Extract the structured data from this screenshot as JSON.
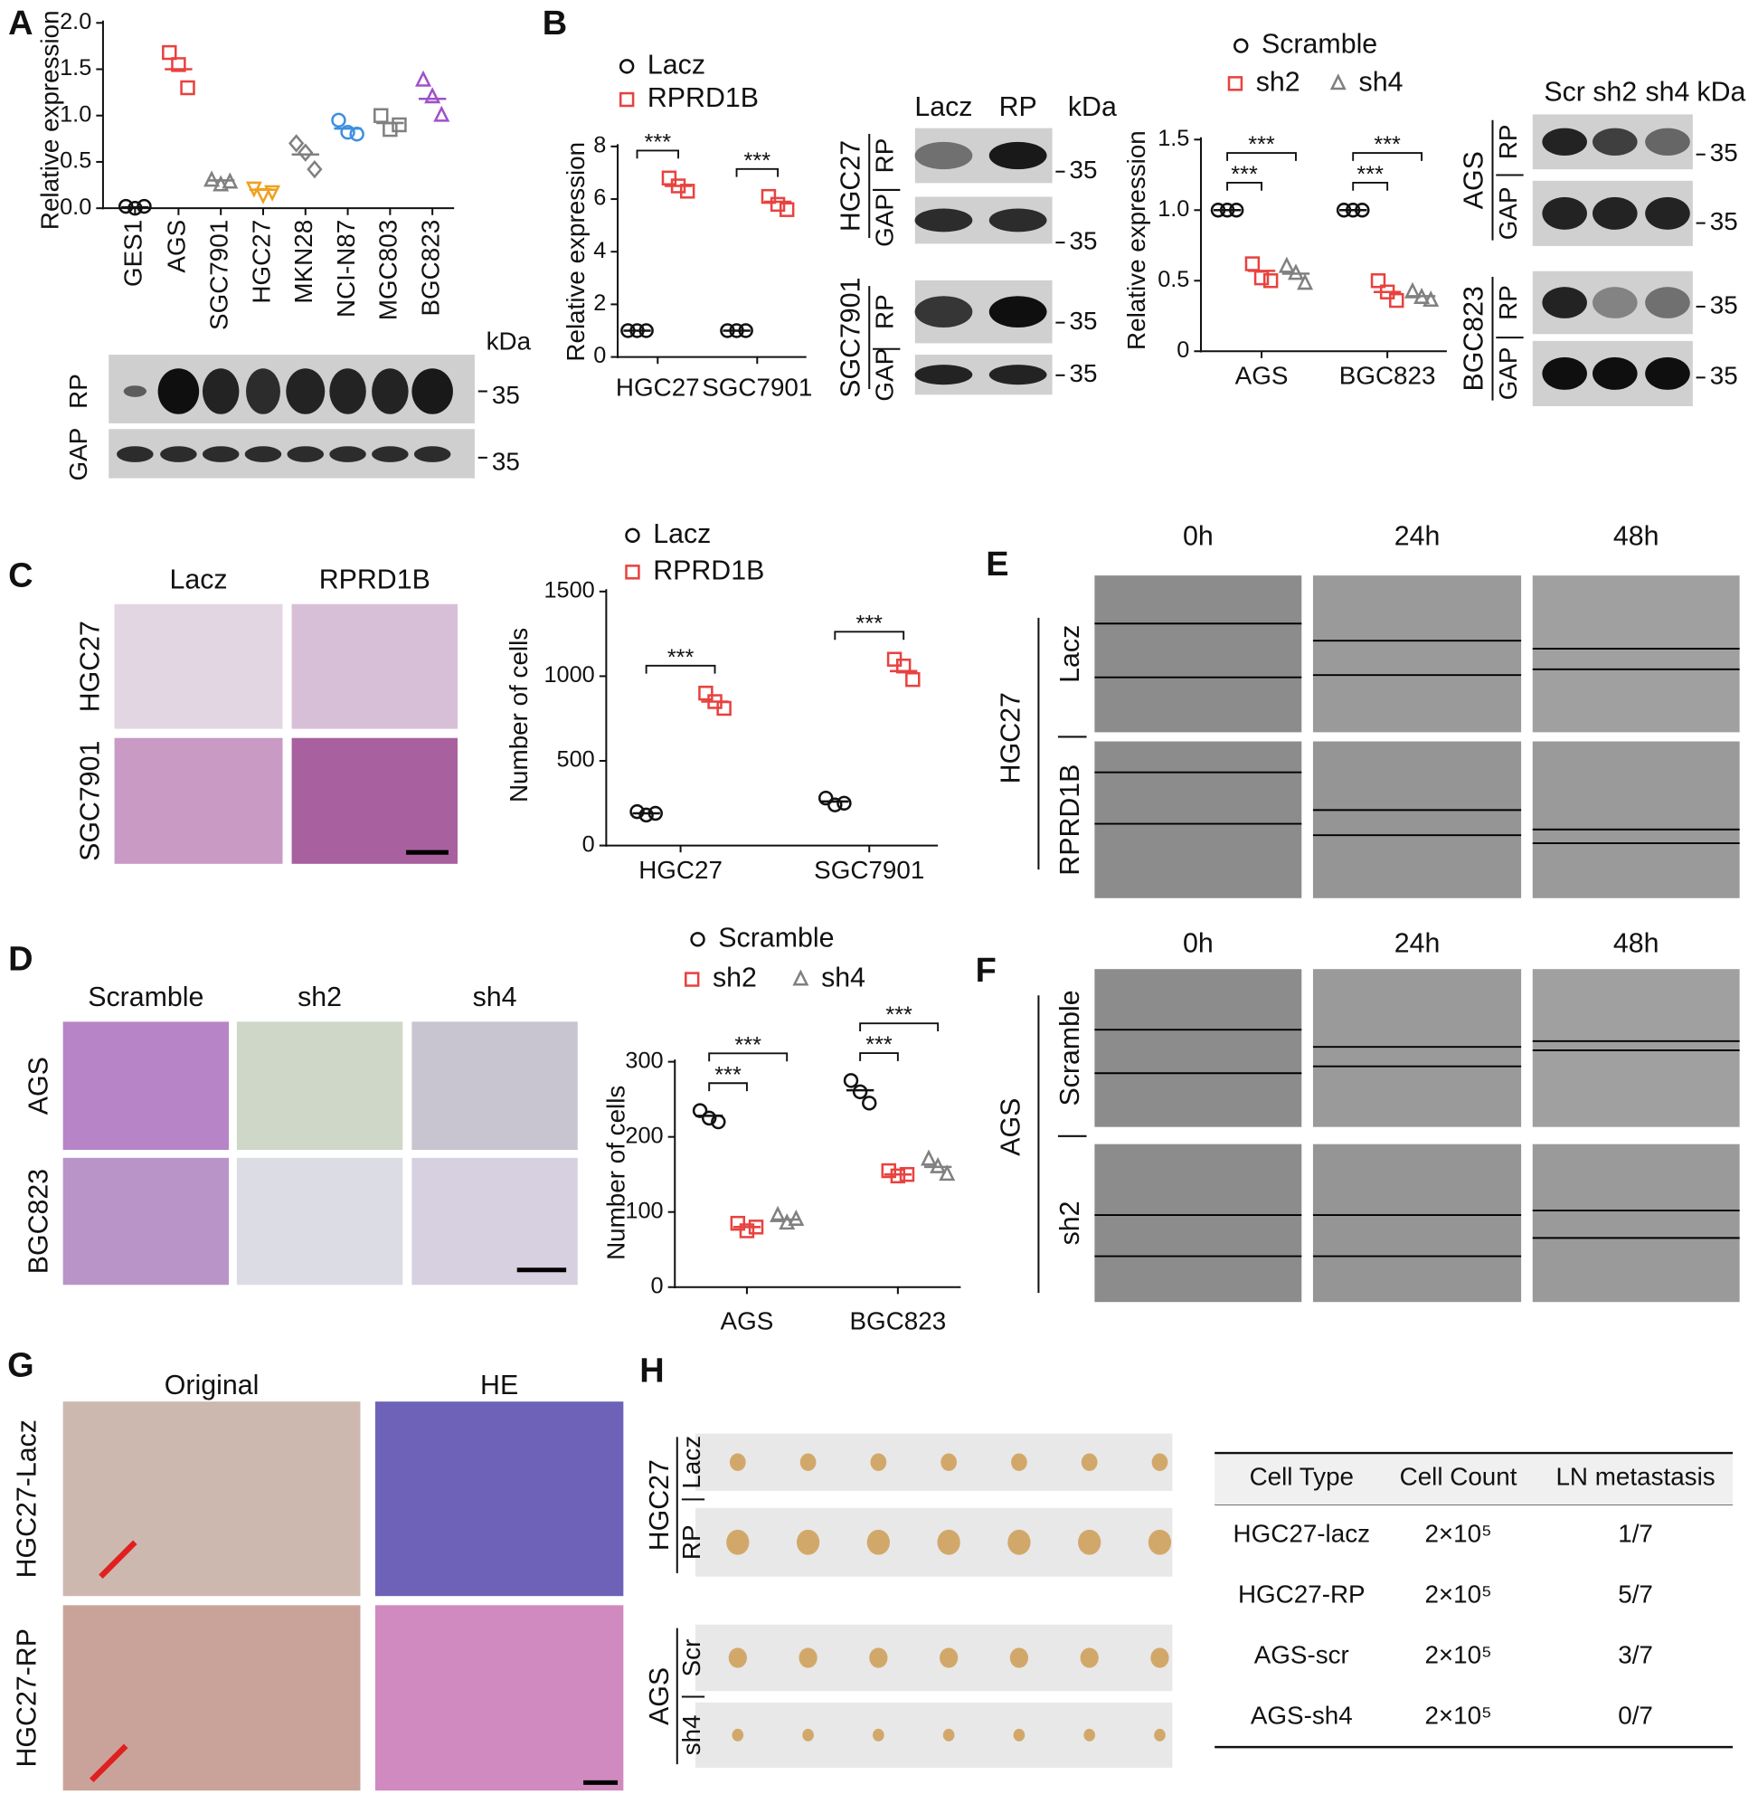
{
  "panel_labels": [
    "A",
    "B",
    "C",
    "D",
    "E",
    "F",
    "G",
    "H"
  ],
  "chart_data": [
    {
      "type": "strip",
      "ylabel": "Relative expression",
      "categories": [
        "GES1",
        "AGS",
        "SGC7901",
        "HGC27",
        "MKN28",
        "NCI-N87",
        "MGC803",
        "BGC823"
      ],
      "values": [
        [
          0.02,
          0.0,
          0.02
        ],
        [
          1.68,
          1.55,
          1.3
        ],
        [
          0.3,
          0.25,
          0.28
        ],
        [
          0.22,
          0.15,
          0.18
        ],
        [
          0.7,
          0.6,
          0.42
        ],
        [
          0.95,
          0.82,
          0.8
        ],
        [
          1.0,
          0.85,
          0.9
        ],
        [
          1.38,
          1.2,
          1.0
        ]
      ],
      "means": [
        0.01,
        1.5,
        0.3,
        0.2,
        0.58,
        0.86,
        0.92,
        1.18
      ],
      "colors": [
        "#111111",
        "#e8423f",
        "#808080",
        "#f0a020",
        "#808080",
        "#3d8fe0",
        "#808080",
        "#a050c8"
      ],
      "markers": [
        "circle",
        "square",
        "triangle",
        "triangle-down",
        "diamond",
        "circle",
        "square",
        "triangle"
      ],
      "ylim": [
        0,
        2
      ],
      "yticks": [
        {
          "value": 0,
          "label": "0.0"
        },
        0.5,
        {
          "value": 1,
          "label": "1.0"
        },
        1.5,
        {
          "value": 2,
          "label": "2.0"
        }
      ]
    },
    {
      "type": "strip",
      "ylabel": "Relative expression",
      "categories": [
        "HGC27",
        "SGC7901"
      ],
      "series": [
        {
          "name": "Lacz",
          "color": "#111111",
          "marker": "circle",
          "values": [
            [
              1,
              1,
              1
            ],
            [
              1,
              1,
              1
            ]
          ],
          "means": [
            1,
            1
          ]
        },
        {
          "name": "RPRD1B",
          "color": "#e8423f",
          "marker": "square",
          "values": [
            [
              6.8,
              6.5,
              6.3
            ],
            [
              6.1,
              5.8,
              5.6
            ]
          ],
          "means": [
            6.5,
            5.9
          ]
        }
      ],
      "ylim": [
        0,
        8
      ],
      "yticks": [
        0,
        2,
        4,
        6,
        8
      ],
      "significance": [
        {
          "label": "***",
          "category": 0,
          "series": [
            0,
            1
          ]
        },
        {
          "label": "***",
          "category": 1,
          "series": [
            0,
            1
          ]
        }
      ]
    },
    {
      "type": "strip",
      "ylabel": "Relative expression",
      "categories": [
        "AGS",
        "BGC823"
      ],
      "series": [
        {
          "name": "Scramble",
          "color": "#111111",
          "marker": "circle",
          "values": [
            [
              1,
              1,
              1
            ],
            [
              1,
              1,
              1
            ]
          ],
          "means": [
            1,
            1
          ]
        },
        {
          "name": "sh2",
          "color": "#e8423f",
          "marker": "square",
          "values": [
            [
              0.62,
              0.52,
              0.5
            ],
            [
              0.5,
              0.42,
              0.36
            ]
          ],
          "means": [
            0.57,
            0.42
          ]
        },
        {
          "name": "sh4",
          "color": "#808080",
          "marker": "triangle",
          "values": [
            [
              0.6,
              0.55,
              0.48
            ],
            [
              0.42,
              0.38,
              0.36
            ]
          ],
          "means": [
            0.55,
            0.39
          ]
        }
      ],
      "ylim": [
        0,
        1.5
      ],
      "yticks": [
        0,
        0.5,
        {
          "value": 1,
          "label": "1.0"
        },
        1.5
      ],
      "significance": [
        {
          "label": "***",
          "category": 0,
          "series": [
            0,
            1
          ]
        },
        {
          "label": "***",
          "category": 0,
          "series": [
            0,
            2
          ]
        },
        {
          "label": "***",
          "category": 1,
          "series": [
            0,
            1
          ]
        },
        {
          "label": "***",
          "category": 1,
          "series": [
            0,
            2
          ]
        }
      ]
    },
    {
      "type": "strip",
      "ylabel": "Number of cells",
      "categories": [
        "HGC27",
        "SGC7901"
      ],
      "series": [
        {
          "name": "Lacz",
          "color": "#111111",
          "marker": "circle",
          "values": [
            [
              200,
              180,
              190
            ],
            [
              280,
              240,
              250
            ]
          ],
          "means": [
            190,
            260
          ]
        },
        {
          "name": "RPRD1B",
          "color": "#e8423f",
          "marker": "square",
          "values": [
            [
              900,
              850,
              810
            ],
            [
              1100,
              1060,
              980
            ]
          ],
          "means": [
            850,
            1030
          ]
        }
      ],
      "ylim": [
        0,
        1500
      ],
      "yticks": [
        0,
        500,
        1000,
        1500
      ],
      "significance": [
        {
          "label": "***",
          "category": 0,
          "series": [
            0,
            1
          ]
        },
        {
          "label": "***",
          "category": 1,
          "series": [
            0,
            1
          ]
        }
      ]
    },
    {
      "type": "strip",
      "ylabel": "Number of cells",
      "categories": [
        "AGS",
        "BGC823"
      ],
      "series": [
        {
          "name": "Scramble",
          "color": "#111111",
          "marker": "circle",
          "values": [
            [
              235,
              225,
              220
            ],
            [
              275,
              260,
              245
            ]
          ],
          "means": [
            228,
            262
          ]
        },
        {
          "name": "sh2",
          "color": "#e8423f",
          "marker": "square",
          "values": [
            [
              85,
              75,
              80
            ],
            [
              155,
              148,
              150
            ]
          ],
          "means": [
            80,
            150
          ]
        },
        {
          "name": "sh4",
          "color": "#808080",
          "marker": "triangle",
          "values": [
            [
              95,
              85,
              90
            ],
            [
              170,
              160,
              150
            ]
          ],
          "means": [
            90,
            160
          ]
        }
      ],
      "ylim": [
        0,
        300
      ],
      "yticks": [
        0,
        100,
        200,
        300
      ],
      "significance": [
        {
          "label": "***",
          "category": 0,
          "series": [
            0,
            1
          ]
        },
        {
          "label": "***",
          "category": 0,
          "series": [
            0,
            2
          ]
        },
        {
          "label": "***",
          "category": 1,
          "series": [
            0,
            1
          ]
        },
        {
          "label": "***",
          "category": 1,
          "series": [
            0,
            2
          ]
        }
      ]
    }
  ],
  "blot_A": {
    "rows": [
      "RP",
      "GAP"
    ],
    "unit": "kDa",
    "markers": [
      "35",
      "35"
    ]
  },
  "blot_B": [
    {
      "lanes": [
        "Lacz",
        "RP"
      ],
      "unit": "kDa",
      "groups": [
        {
          "cell": "HGC27",
          "rows": [
            "RP",
            "GAP"
          ],
          "markers": [
            "35",
            "35"
          ]
        },
        {
          "cell": "SGC7901",
          "rows": [
            "RP",
            "GAP"
          ],
          "markers": [
            "35",
            "35"
          ]
        }
      ]
    },
    {
      "lanes": [
        "Scr",
        "sh2",
        "sh4"
      ],
      "unit": "kDa",
      "groups": [
        {
          "cell": "AGS",
          "rows": [
            "RP",
            "GAP"
          ],
          "markers": [
            "35",
            "35"
          ]
        },
        {
          "cell": "BGC823",
          "rows": [
            "RP",
            "GAP"
          ],
          "markers": [
            "35",
            "35"
          ]
        }
      ]
    }
  ],
  "images": {
    "C": {
      "columns": [
        "Lacz",
        "RPRD1B"
      ],
      "rows": [
        "HGC27",
        "SGC7901"
      ]
    },
    "D": {
      "columns": [
        "Scramble",
        "sh2",
        "sh4"
      ],
      "rows": [
        "AGS",
        "BGC823"
      ]
    },
    "E": {
      "group": "HGC27",
      "columns": [
        "0h",
        "24h",
        "48h"
      ],
      "rows": [
        "Lacz",
        "RPRD1B"
      ]
    },
    "F": {
      "group": "AGS",
      "columns": [
        "0h",
        "24h",
        "48h"
      ],
      "rows": [
        "Scramble",
        "sh2"
      ]
    },
    "G": {
      "columns": [
        "Original",
        "HE"
      ],
      "rows": [
        "HGC27-Lacz",
        "HGC27-RP"
      ]
    },
    "H": {
      "groups": [
        {
          "cell": "HGC27",
          "rows": [
            "Lacz",
            "RP"
          ]
        },
        {
          "cell": "AGS",
          "rows": [
            "Scr",
            "sh4"
          ]
        }
      ]
    }
  },
  "table": {
    "header": [
      "Cell Type",
      "Cell Count",
      "LN metastasis"
    ],
    "rows": [
      [
        "HGC27-lacz",
        "2×10⁵",
        "1/7"
      ],
      [
        "HGC27-RP",
        "2×10⁵",
        "5/7"
      ],
      [
        "AGS-scr",
        "2×10⁵",
        "3/7"
      ],
      [
        "AGS-sh4",
        "2×10⁵",
        "0/7"
      ]
    ]
  }
}
